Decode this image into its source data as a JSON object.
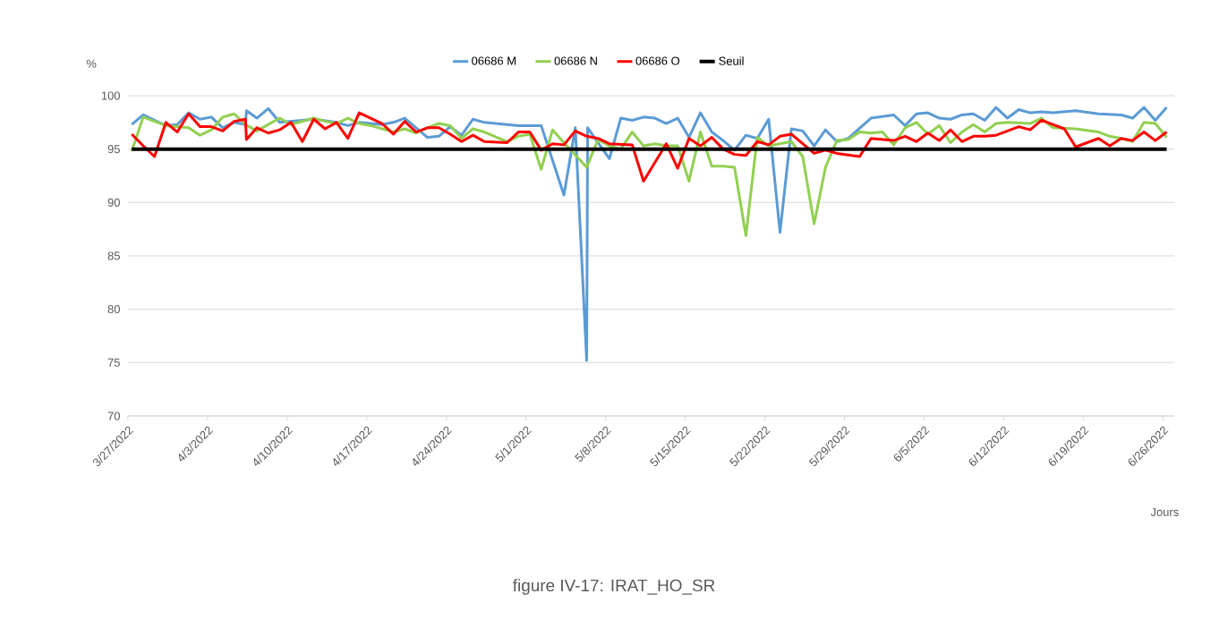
{
  "chart_data": {
    "type": "line",
    "xlabel": "Jours",
    "ylabel": "%",
    "annotations": [
      "figure IV-17: IRAT_HO_SR"
    ],
    "xlim": [
      "2022-03-27",
      "2022-06-27"
    ],
    "ylim": [
      70,
      100
    ],
    "yticks": [
      70,
      75,
      80,
      85,
      90,
      95,
      100
    ],
    "xticks": [
      {
        "value": "2022-03-27",
        "label": "3/27/2022"
      },
      {
        "value": "2022-04-03",
        "label": "4/3/2022"
      },
      {
        "value": "2022-04-10",
        "label": "4/10/2022"
      },
      {
        "value": "2022-04-17",
        "label": "4/17/2022"
      },
      {
        "value": "2022-04-24",
        "label": "4/24/2022"
      },
      {
        "value": "2022-05-01",
        "label": "5/1/2022"
      },
      {
        "value": "2022-05-08",
        "label": "5/8/2022"
      },
      {
        "value": "2022-05-15",
        "label": "5/15/2022"
      },
      {
        "value": "2022-05-22",
        "label": "5/22/2022"
      },
      {
        "value": "2022-05-29",
        "label": "5/29/2022"
      },
      {
        "value": "2022-06-05",
        "label": "6/5/2022"
      },
      {
        "value": "2022-06-12",
        "label": "6/12/2022"
      },
      {
        "value": "2022-06-19",
        "label": "6/19/2022"
      },
      {
        "value": "2022-06-26",
        "label": "6/26/2022"
      }
    ],
    "grid": "y",
    "legend": "top",
    "marker": "none",
    "line_style": "solid",
    "series": [
      {
        "name": "06686 M",
        "color": "#5b9bd5",
        "x": [
          "2022-03-27T08:00",
          "2022-03-28T08:00",
          "2022-03-30T08:00",
          "2022-03-31T08:00",
          "2022-04-01T08:00",
          "2022-04-02T08:00",
          "2022-04-03T08:00",
          "2022-04-04T08:00",
          "2022-04-05T08:00",
          "2022-04-06T08:00",
          "2022-04-06T10:00",
          "2022-04-07T08:00",
          "2022-04-08T08:00",
          "2022-04-09T08:00",
          "2022-04-11T08:00",
          "2022-04-12T08:00",
          "2022-04-14T08:00",
          "2022-04-15T08:00",
          "2022-04-16T08:00",
          "2022-04-18T08:00",
          "2022-04-19T08:00",
          "2022-04-20T08:00",
          "2022-04-22T08:00",
          "2022-04-23T08:00",
          "2022-04-24T08:00",
          "2022-04-25T08:00",
          "2022-04-26T08:00",
          "2022-04-27T08:00",
          "2022-04-30T08:00",
          "2022-05-02T08:00",
          "2022-05-04T08:00",
          "2022-05-05T08:00",
          "2022-05-06T08:00",
          "2022-05-06T10:00",
          "2022-05-08T08:00",
          "2022-05-09T08:00",
          "2022-05-10T08:00",
          "2022-05-11T08:00",
          "2022-05-12T08:00",
          "2022-05-13T08:00",
          "2022-05-14T08:00",
          "2022-05-15T08:00",
          "2022-05-16T08:00",
          "2022-05-17T08:00",
          "2022-05-18T08:00",
          "2022-05-19T08:00",
          "2022-05-20T08:00",
          "2022-05-21T08:00",
          "2022-05-22T08:00",
          "2022-05-23T08:00",
          "2022-05-24T08:00",
          "2022-05-25T08:00",
          "2022-05-26T08:00",
          "2022-05-27T08:00",
          "2022-05-28T08:00",
          "2022-05-29T08:00",
          "2022-05-31T08:00",
          "2022-06-02T08:00",
          "2022-06-03T08:00",
          "2022-06-04T08:00",
          "2022-06-05T08:00",
          "2022-06-06T08:00",
          "2022-06-07T08:00",
          "2022-06-08T08:00",
          "2022-06-09T08:00",
          "2022-06-10T08:00",
          "2022-06-11T08:00",
          "2022-06-12T08:00",
          "2022-06-13T08:00",
          "2022-06-14T08:00",
          "2022-06-15T08:00",
          "2022-06-16T08:00",
          "2022-06-18T08:00",
          "2022-06-20T08:00",
          "2022-06-22T08:00",
          "2022-06-23T08:00",
          "2022-06-24T08:00",
          "2022-06-25T08:00",
          "2022-06-26T08:00"
        ],
        "values": [
          97.3,
          98.2,
          97.2,
          97.3,
          98.4,
          97.8,
          98.0,
          97.0,
          97.5,
          97.3,
          98.6,
          97.9,
          98.8,
          97.5,
          97.7,
          97.8,
          97.5,
          97.2,
          97.5,
          97.3,
          97.5,
          97.9,
          96.1,
          96.2,
          97.1,
          96.3,
          97.8,
          97.5,
          97.2,
          97.2,
          90.7,
          97.0,
          75.2,
          97.0,
          94.1,
          97.9,
          97.7,
          98.0,
          97.9,
          97.4,
          97.9,
          96.1,
          98.4,
          96.6,
          95.8,
          94.9,
          96.3,
          96.0,
          97.8,
          87.2,
          96.9,
          96.7,
          95.3,
          96.8,
          95.7,
          96.0,
          97.9,
          98.2,
          97.2,
          98.3,
          98.4,
          97.9,
          97.8,
          98.2,
          98.3,
          97.7,
          98.9,
          97.9,
          98.7,
          98.4,
          98.5,
          98.4,
          98.6,
          98.3,
          98.2,
          97.9,
          98.9,
          97.7,
          98.9
        ]
      },
      {
        "name": "06686 N",
        "color": "#92d050",
        "x": [
          "2022-03-27T08:00",
          "2022-03-28T08:00",
          "2022-03-30T08:00",
          "2022-04-01T08:00",
          "2022-04-02T08:00",
          "2022-04-03T08:00",
          "2022-04-04T08:00",
          "2022-04-05T08:00",
          "2022-04-06T08:00",
          "2022-04-07T08:00",
          "2022-04-09T08:00",
          "2022-04-10T08:00",
          "2022-04-12T08:00",
          "2022-04-13T08:00",
          "2022-04-14T08:00",
          "2022-04-15T08:00",
          "2022-04-16T08:00",
          "2022-04-17T08:00",
          "2022-04-19T08:00",
          "2022-04-20T08:00",
          "2022-04-21T08:00",
          "2022-04-22T08:00",
          "2022-04-23T08:00",
          "2022-04-24T08:00",
          "2022-04-25T08:00",
          "2022-04-26T08:00",
          "2022-04-27T08:00",
          "2022-04-29T08:00",
          "2022-04-30T08:00",
          "2022-05-01T08:00",
          "2022-05-02T08:00",
          "2022-05-03T08:00",
          "2022-05-04T08:00",
          "2022-05-06T08:00",
          "2022-05-07T08:00",
          "2022-05-08T08:00",
          "2022-05-09T08:00",
          "2022-05-10T08:00",
          "2022-05-11T08:00",
          "2022-05-12T08:00",
          "2022-05-13T08:00",
          "2022-05-14T08:00",
          "2022-05-15T08:00",
          "2022-05-16T08:00",
          "2022-05-17T08:00",
          "2022-05-18T08:00",
          "2022-05-19T08:00",
          "2022-05-20T08:00",
          "2022-05-21T08:00",
          "2022-05-22T08:00",
          "2022-05-24T08:00",
          "2022-05-25T08:00",
          "2022-05-26T08:00",
          "2022-05-27T08:00",
          "2022-05-28T08:00",
          "2022-05-29T08:00",
          "2022-05-30T08:00",
          "2022-05-31T08:00",
          "2022-06-01T08:00",
          "2022-06-02T08:00",
          "2022-06-03T08:00",
          "2022-06-04T08:00",
          "2022-06-05T08:00",
          "2022-06-06T08:00",
          "2022-06-07T08:00",
          "2022-06-08T08:00",
          "2022-06-09T08:00",
          "2022-06-10T08:00",
          "2022-06-11T08:00",
          "2022-06-12T08:00",
          "2022-06-14T08:00",
          "2022-06-15T08:00",
          "2022-06-16T08:00",
          "2022-06-18T08:00",
          "2022-06-20T08:00",
          "2022-06-21T08:00",
          "2022-06-22T08:00",
          "2022-06-23T08:00",
          "2022-06-24T08:00",
          "2022-06-25T08:00",
          "2022-06-26T08:00"
        ],
        "values": [
          94.8,
          98.0,
          97.2,
          97.0,
          96.3,
          96.8,
          98.0,
          98.3,
          97.3,
          96.7,
          97.9,
          97.3,
          97.9,
          97.6,
          97.4,
          97.9,
          97.4,
          97.2,
          96.6,
          96.9,
          96.5,
          97.0,
          97.4,
          97.2,
          96.0,
          96.9,
          96.6,
          95.7,
          96.2,
          96.4,
          93.1,
          96.8,
          95.6,
          93.3,
          95.9,
          95.3,
          95.0,
          96.6,
          95.3,
          95.5,
          95.3,
          95.3,
          92.0,
          96.6,
          93.4,
          93.4,
          93.3,
          86.9,
          96.1,
          95.3,
          95.7,
          94.3,
          88.0,
          93.3,
          95.8,
          95.9,
          96.6,
          96.5,
          96.6,
          95.4,
          97.0,
          97.5,
          96.4,
          97.2,
          95.6,
          96.6,
          97.3,
          96.6,
          97.4,
          97.5,
          97.4,
          97.9,
          97.0,
          96.9,
          96.6,
          96.2,
          96.0,
          95.7,
          97.5,
          97.4,
          96.1
        ]
      },
      {
        "name": "06686 O",
        "color": "#ff0000",
        "x": [
          "2022-03-27T08:00",
          "2022-03-28T08:00",
          "2022-03-29T08:00",
          "2022-03-30T08:00",
          "2022-03-31T08:00",
          "2022-04-01T08:00",
          "2022-04-02T08:00",
          "2022-04-03T08:00",
          "2022-04-04T08:00",
          "2022-04-05T08:00",
          "2022-04-06T08:00",
          "2022-04-06T10:00",
          "2022-04-07T08:00",
          "2022-04-08T08:00",
          "2022-04-09T08:00",
          "2022-04-10T08:00",
          "2022-04-11T08:00",
          "2022-04-12T08:00",
          "2022-04-13T08:00",
          "2022-04-14T08:00",
          "2022-04-15T08:00",
          "2022-04-16T08:00",
          "2022-04-18T08:00",
          "2022-04-19T08:00",
          "2022-04-20T08:00",
          "2022-04-21T08:00",
          "2022-04-22T08:00",
          "2022-04-23T08:00",
          "2022-04-24T08:00",
          "2022-04-25T08:00",
          "2022-04-26T08:00",
          "2022-04-27T08:00",
          "2022-04-29T08:00",
          "2022-04-30T08:00",
          "2022-05-01T08:00",
          "2022-05-02T08:00",
          "2022-05-03T08:00",
          "2022-05-04T08:00",
          "2022-05-05T08:00",
          "2022-05-06T08:00",
          "2022-05-07T08:00",
          "2022-05-08T08:00",
          "2022-05-10T08:00",
          "2022-05-11T08:00",
          "2022-05-13T08:00",
          "2022-05-14T08:00",
          "2022-05-15T08:00",
          "2022-05-16T08:00",
          "2022-05-17T08:00",
          "2022-05-18T08:00",
          "2022-05-19T08:00",
          "2022-05-20T08:00",
          "2022-05-21T08:00",
          "2022-05-22T08:00",
          "2022-05-23T08:00",
          "2022-05-24T08:00",
          "2022-05-26T08:00",
          "2022-05-27T08:00",
          "2022-05-28T08:00",
          "2022-05-30T08:00",
          "2022-05-31T08:00",
          "2022-06-02T08:00",
          "2022-06-03T08:00",
          "2022-06-04T08:00",
          "2022-06-05T08:00",
          "2022-06-06T08:00",
          "2022-06-07T08:00",
          "2022-06-08T08:00",
          "2022-06-09T08:00",
          "2022-06-10T08:00",
          "2022-06-11T08:00",
          "2022-06-13T08:00",
          "2022-06-14T08:00",
          "2022-06-15T08:00",
          "2022-06-17T08:00",
          "2022-06-18T08:00",
          "2022-06-20T08:00",
          "2022-06-21T08:00",
          "2022-06-22T08:00",
          "2022-06-23T08:00",
          "2022-06-24T08:00",
          "2022-06-25T08:00",
          "2022-06-26T08:00"
        ],
        "values": [
          96.4,
          95.3,
          94.3,
          97.5,
          96.6,
          98.3,
          97.1,
          97.1,
          96.7,
          97.6,
          97.8,
          95.9,
          97.0,
          96.5,
          96.8,
          97.5,
          95.7,
          97.8,
          96.9,
          97.5,
          96.0,
          98.4,
          97.4,
          96.4,
          97.6,
          96.6,
          97.0,
          97.0,
          96.4,
          95.7,
          96.3,
          95.7,
          95.6,
          96.6,
          96.6,
          94.9,
          95.5,
          95.4,
          96.7,
          96.2,
          96.0,
          95.5,
          95.4,
          92.0,
          95.5,
          93.2,
          96.0,
          95.3,
          96.1,
          95.0,
          94.5,
          94.4,
          95.7,
          95.4,
          96.2,
          96.4,
          94.6,
          94.9,
          94.6,
          94.3,
          96.0,
          95.8,
          96.2,
          95.7,
          96.5,
          95.8,
          96.8,
          95.7,
          96.2,
          96.2,
          96.3,
          97.1,
          96.8,
          97.7,
          96.9,
          95.2,
          96.0,
          95.3,
          96.0,
          95.8,
          96.6,
          95.8,
          96.6
        ]
      },
      {
        "name": "Seuil",
        "color": "#000000",
        "x": [
          "2022-03-27T08:00",
          "2022-06-26T08:00"
        ],
        "values": [
          95,
          95
        ]
      }
    ]
  }
}
